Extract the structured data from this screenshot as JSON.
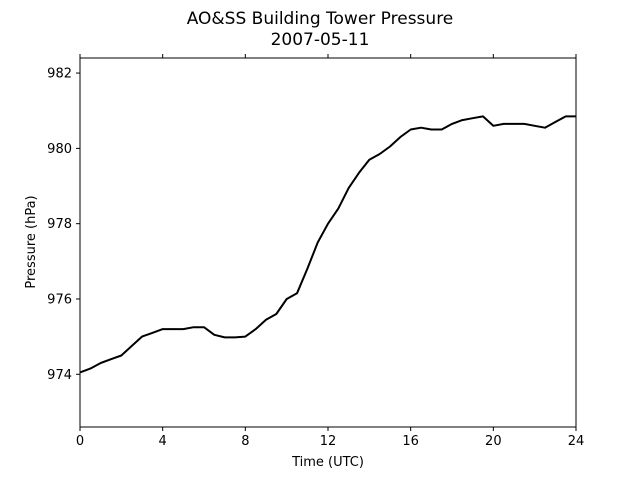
{
  "chart_data": {
    "type": "line",
    "title": "AO&SS Building Tower Pressure",
    "subtitle": "2007-05-11",
    "xlabel": "Time (UTC)",
    "ylabel": "Pressure (hPa)",
    "xlim": [
      0,
      24
    ],
    "ylim": [
      972.6,
      982.4
    ],
    "xticks": [
      0,
      4,
      8,
      12,
      16,
      20,
      24
    ],
    "yticks": [
      974,
      976,
      978,
      980,
      982
    ],
    "grid": false,
    "series": [
      {
        "color": "#000000",
        "x": [
          0,
          0.5,
          1.0,
          1.5,
          2.0,
          2.5,
          3.0,
          3.5,
          4.0,
          4.5,
          5.0,
          5.5,
          6.0,
          6.5,
          7.0,
          7.5,
          8.0,
          8.5,
          9.0,
          9.5,
          10.0,
          10.5,
          11.0,
          11.5,
          12.0,
          12.5,
          13.0,
          13.5,
          14.0,
          14.5,
          15.0,
          15.5,
          16.0,
          16.5,
          17.0,
          17.5,
          18.0,
          18.5,
          19.0,
          19.5,
          20.0,
          20.5,
          21.0,
          21.5,
          22.0,
          22.5,
          23.0,
          23.5,
          24.0
        ],
        "y": [
          974.05,
          974.15,
          974.3,
          974.4,
          974.5,
          974.75,
          975.0,
          975.1,
          975.2,
          975.2,
          975.2,
          975.25,
          975.25,
          975.05,
          974.98,
          974.98,
          975.0,
          975.2,
          975.45,
          975.6,
          976.0,
          976.15,
          976.8,
          977.5,
          978.0,
          978.4,
          978.95,
          979.35,
          979.7,
          979.85,
          980.05,
          980.3,
          980.5,
          980.55,
          980.5,
          980.5,
          980.65,
          980.75,
          980.8,
          980.85,
          980.6,
          980.65,
          980.65,
          980.65,
          980.6,
          980.55,
          980.7,
          980.85,
          980.85
        ]
      }
    ]
  }
}
